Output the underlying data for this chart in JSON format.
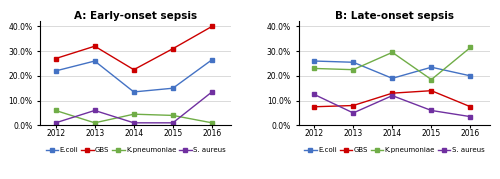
{
  "years": [
    2012,
    2013,
    2014,
    2015,
    2016
  ],
  "panel_A": {
    "title": "A: Early-onset sepsis",
    "E.coli": [
      0.22,
      0.26,
      0.135,
      0.15,
      0.265
    ],
    "GBS": [
      0.27,
      0.32,
      0.225,
      0.31,
      0.4
    ],
    "K.pneumoniae": [
      0.06,
      0.01,
      0.045,
      0.04,
      0.01
    ],
    "S. aureus": [
      0.01,
      0.06,
      0.01,
      0.01,
      0.135
    ]
  },
  "panel_B": {
    "title": "B: Late-onset sepsis",
    "E.coli": [
      0.26,
      0.255,
      0.19,
      0.235,
      0.2
    ],
    "GBS": [
      0.075,
      0.08,
      0.13,
      0.14,
      0.075
    ],
    "K.pneumoniae": [
      0.23,
      0.225,
      0.295,
      0.185,
      0.315
    ],
    "S. aureus": [
      0.125,
      0.05,
      0.12,
      0.06,
      0.035
    ]
  },
  "colors": {
    "E.coli": "#4472C4",
    "GBS": "#CC0000",
    "K.pneumoniae": "#70AD47",
    "S. aureus": "#7030A0"
  },
  "ylim": [
    0.0,
    0.42
  ],
  "yticks": [
    0.0,
    0.1,
    0.2,
    0.3,
    0.4
  ],
  "background_color": "#FFFFFF",
  "title_fontsize": 7.5,
  "tick_fontsize": 5.5,
  "legend_fontsize": 5.0
}
